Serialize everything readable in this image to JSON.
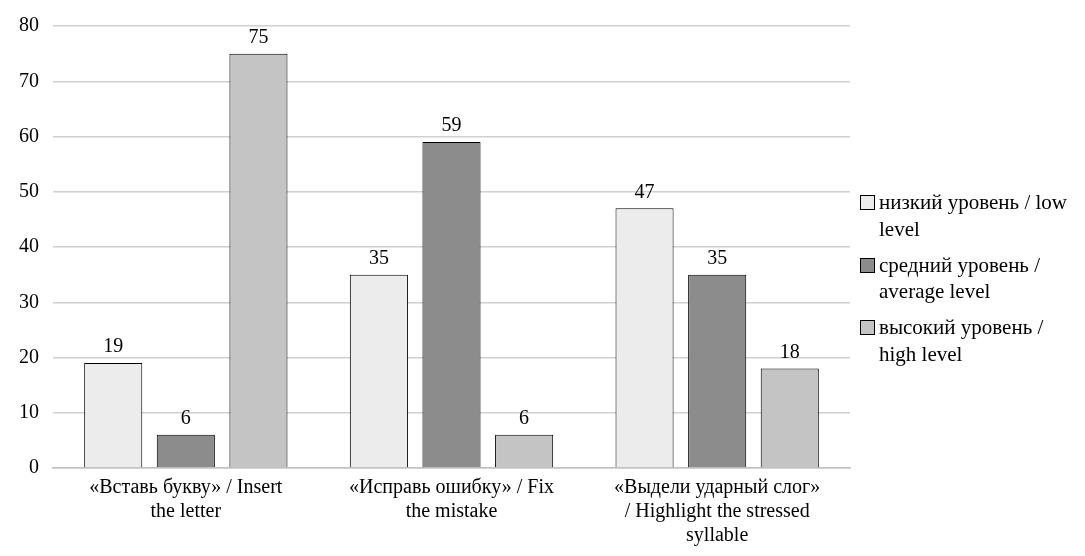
{
  "chart_data": {
    "type": "bar",
    "categories": [
      "«Вставь букву» / Insert the letter",
      "«Исправь ошибку» / Fix the mistake",
      "«Выдели ударный слог» / Highlight the stressed syllable"
    ],
    "series": [
      {
        "name": "низкий уровень / low level",
        "color": "#ececec",
        "values": [
          19,
          35,
          47
        ]
      },
      {
        "name": "средний уровень / average level",
        "color": "#8c8c8c",
        "values": [
          6,
          59,
          35
        ]
      },
      {
        "name": "высокий уровень / high level",
        "color": "#c4c4c4",
        "values": [
          75,
          6,
          18
        ]
      }
    ],
    "ylim": [
      0,
      80
    ],
    "yticks": [
      0,
      10,
      20,
      30,
      40,
      50,
      60,
      70,
      80
    ],
    "grid": "y",
    "legend": "right",
    "data_labels": true
  }
}
